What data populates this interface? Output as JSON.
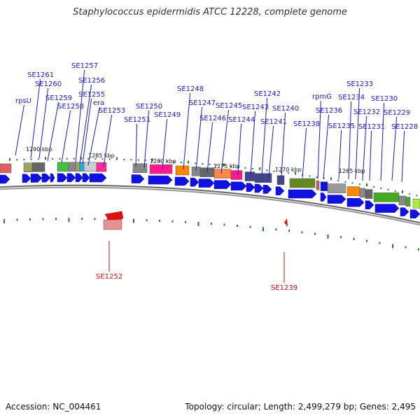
{
  "title": "Staphylococcus epidermidis ATCC 12228, complete genome",
  "accession": "Accession: NC_004461",
  "summary": "Topology: circular; Length: 2,499,279 bp; Genes: 2,495",
  "colors": {
    "forward_gene": "#1010e0",
    "reverse_gene": "#e01010",
    "tick": "#2a7a2a",
    "label_forward": "#1a1acc",
    "label_reverse": "#cc1111"
  },
  "kbp_labels": [
    "1290 kbp",
    "1285 kbp",
    "1280 kbp",
    "1275 kbp",
    "1270 kbp",
    "1265 kbp"
  ],
  "forward_labels": [
    "rpsU",
    "SE1261",
    "SE1260",
    "SE1259",
    "SE1258",
    "SE1257",
    "SE1256",
    "SE1255",
    "era",
    "SE1253",
    "SE1251",
    "SE1250",
    "SE1249",
    "SE1248",
    "SE1247",
    "SE1246",
    "SE1245",
    "SE1244",
    "SE1243",
    "SE1242",
    "SE1241",
    "SE1240",
    "SE1238",
    "rpmG",
    "SE1236",
    "SE1235",
    "SE1234",
    "SE1233",
    "SE1232",
    "SE1231",
    "SE1230",
    "SE1229",
    "SE1228"
  ],
  "reverse_labels": [
    "SE1252",
    "SE1239"
  ]
}
